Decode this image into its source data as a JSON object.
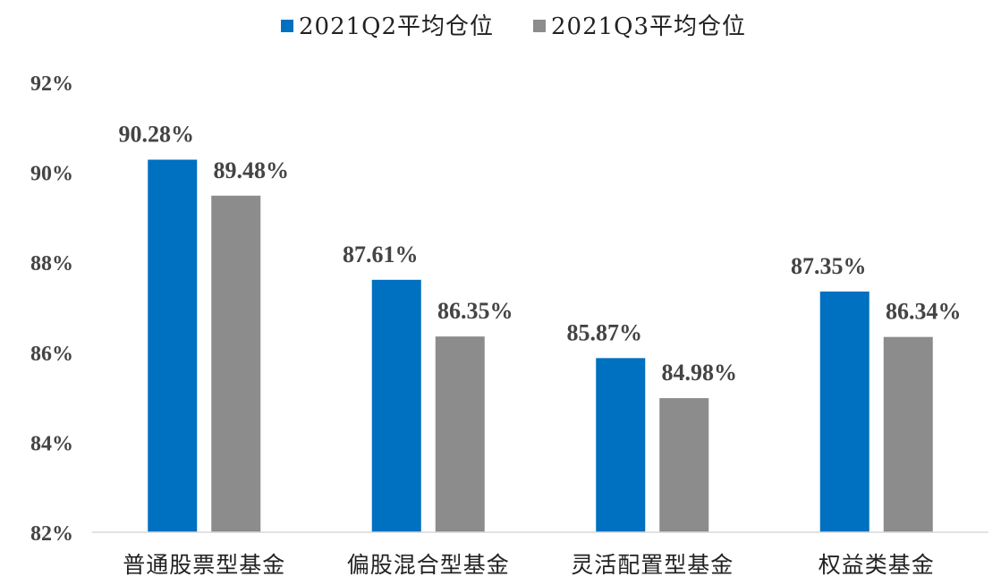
{
  "chart_data": {
    "type": "bar",
    "categories": [
      "普通股票型基金",
      "偏股混合型基金",
      "灵活配置型基金",
      "权益类基金"
    ],
    "series": [
      {
        "name": "2021Q2平均仓位",
        "values": [
          90.28,
          87.61,
          85.87,
          87.35
        ],
        "labels": [
          "90.28%",
          "87.61%",
          "85.87%",
          "87.35%"
        ],
        "color": "#0070C0"
      },
      {
        "name": "2021Q3平均仓位",
        "values": [
          89.48,
          86.35,
          84.98,
          86.34
        ],
        "labels": [
          "89.48%",
          "86.35%",
          "84.98%",
          "86.34%"
        ],
        "color": "#8C8C8C"
      }
    ],
    "ylim": [
      82,
      92
    ],
    "yticks": [
      82,
      84,
      86,
      88,
      90,
      92
    ],
    "ytick_labels": [
      "82%",
      "84%",
      "86%",
      "88%",
      "90%",
      "92%"
    ],
    "legend_position": "top-center",
    "grid": false
  }
}
